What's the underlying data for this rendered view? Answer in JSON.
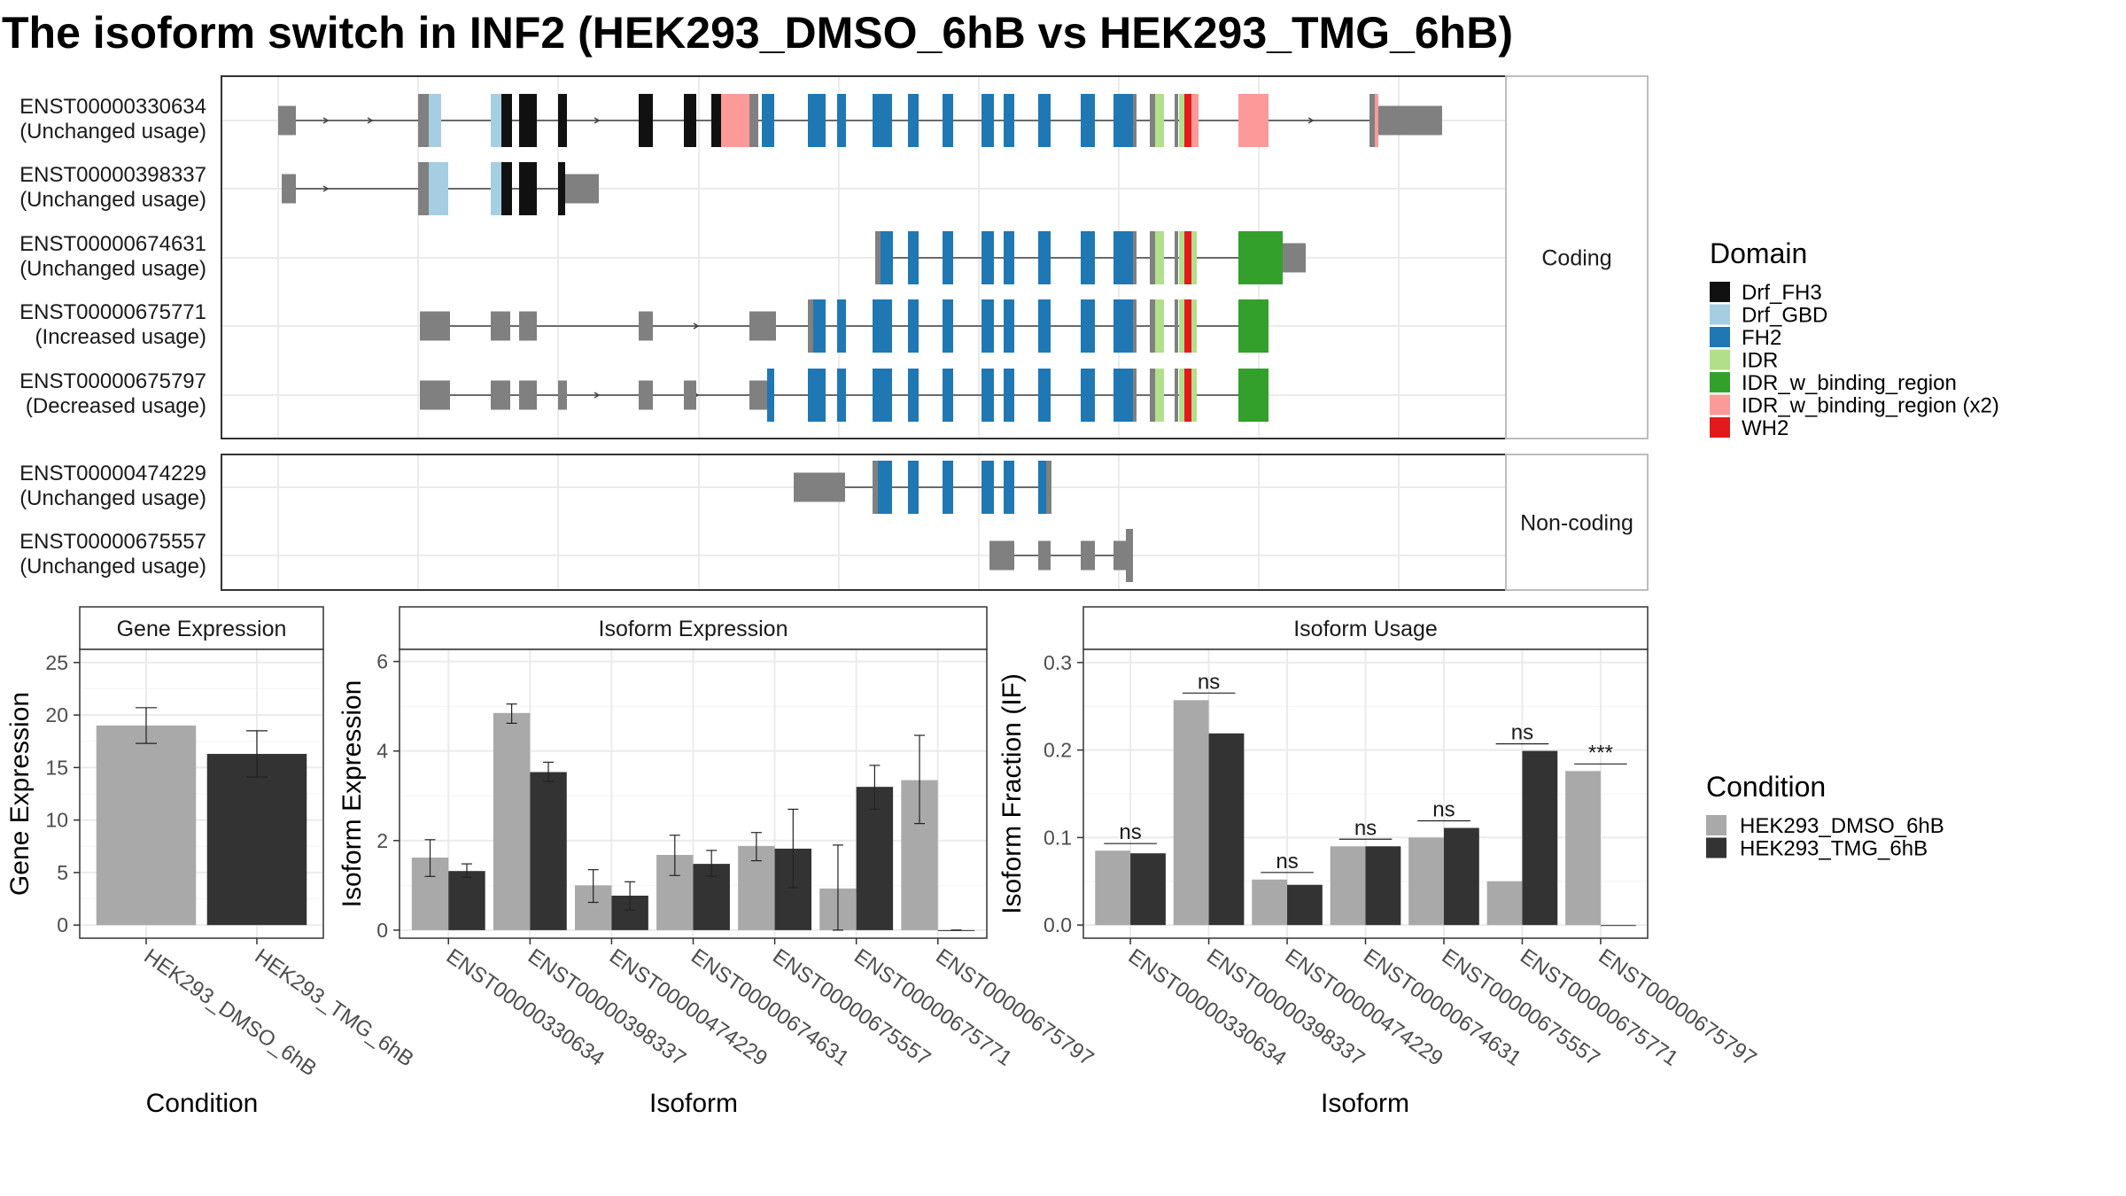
{
  "title": "The isoform switch in INF2 (HEK293_DMSO_6hB vs HEK293_TMG_6hB)",
  "colors": {
    "background": "#ffffff",
    "panel_border": "#333333",
    "strip_fill": "#ffffff",
    "grid": "#ebebeb",
    "utr": "#808080",
    "intron": "#404040",
    "condition_1": "#a9a9a9",
    "condition_2": "#333333"
  },
  "domain_legend": {
    "title": "Domain",
    "items": [
      {
        "label": "Drf_FH3",
        "color": "#111111"
      },
      {
        "label": "Drf_GBD",
        "color": "#a6cee3"
      },
      {
        "label": "FH2",
        "color": "#1f78b4"
      },
      {
        "label": "IDR",
        "color": "#b2df8a"
      },
      {
        "label": "IDR_w_binding_region",
        "color": "#33a02c"
      },
      {
        "label": "IDR_w_binding_region (x2)",
        "color": "#fb9a99"
      },
      {
        "label": "WH2",
        "color": "#e31a1c"
      }
    ]
  },
  "condition_legend": {
    "title": "Condition",
    "items": [
      {
        "label": "HEK293_DMSO_6hB",
        "color": "#a9a9a9"
      },
      {
        "label": "HEK293_TMG_6hB",
        "color": "#333333"
      }
    ]
  },
  "transcript_panels": [
    {
      "strip": "Coding",
      "transcripts": [
        {
          "id": "ENST00000330634",
          "usage": "(Unchanged usage)"
        },
        {
          "id": "ENST00000398337",
          "usage": "(Unchanged usage)"
        },
        {
          "id": "ENST00000674631",
          "usage": "(Unchanged usage)"
        },
        {
          "id": "ENST00000675771",
          "usage": "(Increased usage)"
        },
        {
          "id": "ENST00000675797",
          "usage": "(Decreased usage)"
        }
      ]
    },
    {
      "strip": "Non-coding",
      "transcripts": [
        {
          "id": "ENST00000474229",
          "usage": "(Unchanged usage)"
        },
        {
          "id": "ENST00000675557",
          "usage": "(Unchanged usage)"
        }
      ]
    }
  ],
  "chart_data": [
    {
      "type": "bar",
      "title": "Gene Expression",
      "xlabel": "Condition",
      "ylabel": "Gene Expression",
      "ylim": [
        0,
        25
      ],
      "yticks": [
        0,
        5,
        10,
        15,
        20,
        25
      ],
      "categories": [
        "HEK293_DMSO_6hB",
        "HEK293_TMG_6hB"
      ],
      "values": [
        19.0,
        16.3
      ],
      "error": [
        [
          17.3,
          20.7
        ],
        [
          14.1,
          18.5
        ]
      ],
      "grid": true
    },
    {
      "type": "bar",
      "title": "Isoform Expression",
      "xlabel": "Isoform",
      "ylabel": "Isoform Expression",
      "ylim": [
        0,
        6
      ],
      "yticks": [
        0,
        2,
        4,
        6
      ],
      "categories": [
        "ENST00000330634",
        "ENST00000398337",
        "ENST00000474229",
        "ENST00000674631",
        "ENST00000675557",
        "ENST00000675771",
        "ENST00000675797"
      ],
      "series": [
        {
          "name": "HEK293_DMSO_6hB",
          "values": [
            1.62,
            4.85,
            1.0,
            1.68,
            1.88,
            0.93,
            3.35
          ],
          "error": [
            [
              1.2,
              2.02
            ],
            [
              4.62,
              5.05
            ],
            [
              0.62,
              1.35
            ],
            [
              1.22,
              2.12
            ],
            [
              1.55,
              2.18
            ],
            [
              0.0,
              1.9
            ],
            [
              2.38,
              4.35
            ]
          ]
        },
        {
          "name": "HEK293_TMG_6hB",
          "values": [
            1.32,
            3.53,
            0.77,
            1.48,
            1.82,
            3.2,
            0.0
          ],
          "error": [
            [
              1.18,
              1.48
            ],
            [
              3.32,
              3.75
            ],
            [
              0.45,
              1.08
            ],
            [
              1.2,
              1.78
            ],
            [
              0.95,
              2.7
            ],
            [
              2.7,
              3.68
            ],
            [
              0.0,
              0.0
            ]
          ]
        }
      ],
      "grid": true
    },
    {
      "type": "bar",
      "title": "Isoform Usage",
      "xlabel": "Isoform",
      "ylabel": "Isoform Fraction (IF)",
      "ylim": [
        0,
        0.3
      ],
      "yticks": [
        0.0,
        0.1,
        0.2,
        0.3
      ],
      "categories": [
        "ENST00000330634",
        "ENST00000398337",
        "ENST00000474229",
        "ENST00000674631",
        "ENST00000675557",
        "ENST00000675771",
        "ENST00000675797"
      ],
      "series": [
        {
          "name": "HEK293_DMSO_6hB",
          "values": [
            0.085,
            0.257,
            0.052,
            0.09,
            0.1,
            0.05,
            0.176
          ]
        },
        {
          "name": "HEK293_TMG_6hB",
          "values": [
            0.082,
            0.219,
            0.046,
            0.09,
            0.111,
            0.199,
            0.0
          ]
        }
      ],
      "significance": [
        "ns",
        "ns",
        "ns",
        "ns",
        "ns",
        "ns",
        "***"
      ],
      "grid": true
    }
  ]
}
